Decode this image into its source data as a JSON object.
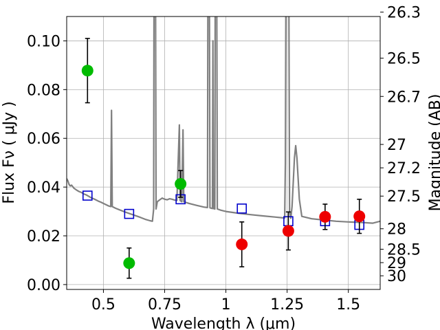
{
  "chart_data": {
    "type": "scatter",
    "title": "",
    "xlabel": "Wavelength  λ (μm)",
    "ylabel": "Flux  Fν  ( μJy )",
    "ylabel_right": "Magnitude (AB)",
    "xlim": [
      0.35,
      1.63
    ],
    "ylim": [
      -0.002,
      0.11
    ],
    "grid": true,
    "x_ticks": [
      {
        "value": 0.5,
        "label": "0.5"
      },
      {
        "value": 0.75,
        "label": "0.75"
      },
      {
        "value": 1.0,
        "label": "1"
      },
      {
        "value": 1.25,
        "label": "1.25"
      },
      {
        "value": 1.5,
        "label": "1.5"
      }
    ],
    "y_ticks": [
      {
        "value": 0.0,
        "label": "0.00"
      },
      {
        "value": 0.02,
        "label": "0.02"
      },
      {
        "value": 0.04,
        "label": "0.04"
      },
      {
        "value": 0.06,
        "label": "0.06"
      },
      {
        "value": 0.08,
        "label": "0.08"
      },
      {
        "value": 0.1,
        "label": "0.10"
      }
    ],
    "mag_ticks": [
      {
        "flux": 0.1118,
        "label": "26.3"
      },
      {
        "flux": 0.0929,
        "label": "26.5"
      },
      {
        "flux": 0.0772,
        "label": "26.7"
      },
      {
        "flux": 0.0575,
        "label": "27"
      },
      {
        "flux": 0.0479,
        "label": "27.2"
      },
      {
        "flux": 0.0363,
        "label": "27.5"
      },
      {
        "flux": 0.0229,
        "label": "28"
      },
      {
        "flux": 0.0145,
        "label": "28.5"
      },
      {
        "flux": 0.009,
        "label": "29"
      },
      {
        "flux": 0.0036,
        "label": "30"
      }
    ],
    "model_spectrum": {
      "color": "#808080",
      "points": [
        [
          0.35,
          0.0435
        ],
        [
          0.355,
          0.0425
        ],
        [
          0.36,
          0.041
        ],
        [
          0.365,
          0.0405
        ],
        [
          0.37,
          0.0408
        ],
        [
          0.38,
          0.0395
        ],
        [
          0.39,
          0.0388
        ],
        [
          0.4,
          0.0382
        ],
        [
          0.41,
          0.0378
        ],
        [
          0.42,
          0.0372
        ],
        [
          0.43,
          0.0368
        ],
        [
          0.44,
          0.0362
        ],
        [
          0.45,
          0.0356
        ],
        [
          0.46,
          0.0352
        ],
        [
          0.47,
          0.0347
        ],
        [
          0.48,
          0.0342
        ],
        [
          0.49,
          0.0338
        ],
        [
          0.5,
          0.0333
        ],
        [
          0.51,
          0.0328
        ],
        [
          0.52,
          0.0323
        ],
        [
          0.53,
          0.032
        ],
        [
          0.533,
          0.0715
        ],
        [
          0.536,
          0.032
        ],
        [
          0.55,
          0.0313
        ],
        [
          0.57,
          0.0305
        ],
        [
          0.59,
          0.0297
        ],
        [
          0.61,
          0.029
        ],
        [
          0.63,
          0.0283
        ],
        [
          0.65,
          0.0276
        ],
        [
          0.67,
          0.0268
        ],
        [
          0.69,
          0.0262
        ],
        [
          0.7,
          0.026
        ],
        [
          0.705,
          0.031
        ],
        [
          0.707,
          0.15
        ],
        [
          0.712,
          0.15
        ],
        [
          0.715,
          0.031
        ],
        [
          0.72,
          0.034
        ],
        [
          0.73,
          0.0348
        ],
        [
          0.74,
          0.0355
        ],
        [
          0.75,
          0.035
        ],
        [
          0.76,
          0.0348
        ],
        [
          0.77,
          0.0352
        ],
        [
          0.78,
          0.035
        ],
        [
          0.79,
          0.0347
        ],
        [
          0.8,
          0.0345
        ],
        [
          0.81,
          0.0655
        ],
        [
          0.813,
          0.0345
        ],
        [
          0.82,
          0.034
        ],
        [
          0.825,
          0.0635
        ],
        [
          0.828,
          0.034
        ],
        [
          0.85,
          0.0333
        ],
        [
          0.88,
          0.0325
        ],
        [
          0.91,
          0.0318
        ],
        [
          0.925,
          0.0316
        ],
        [
          0.927,
          0.15
        ],
        [
          0.932,
          0.15
        ],
        [
          0.935,
          0.0315
        ],
        [
          0.945,
          0.0312
        ],
        [
          0.947,
          0.1
        ],
        [
          0.949,
          0.0312
        ],
        [
          0.955,
          0.031
        ],
        [
          0.957,
          0.15
        ],
        [
          0.962,
          0.15
        ],
        [
          0.965,
          0.031
        ],
        [
          0.98,
          0.0305
        ],
        [
          1.0,
          0.03
        ],
        [
          1.05,
          0.0293
        ],
        [
          1.1,
          0.0287
        ],
        [
          1.15,
          0.0282
        ],
        [
          1.2,
          0.0277
        ],
        [
          1.24,
          0.0273
        ],
        [
          1.243,
          0.05
        ],
        [
          1.246,
          0.15
        ],
        [
          1.256,
          0.15
        ],
        [
          1.26,
          0.03
        ],
        [
          1.265,
          0.0272
        ],
        [
          1.27,
          0.032
        ],
        [
          1.28,
          0.052
        ],
        [
          1.285,
          0.057
        ],
        [
          1.29,
          0.052
        ],
        [
          1.3,
          0.035
        ],
        [
          1.31,
          0.028
        ],
        [
          1.35,
          0.027
        ],
        [
          1.4,
          0.0265
        ],
        [
          1.45,
          0.026
        ],
        [
          1.5,
          0.0257
        ],
        [
          1.55,
          0.0255
        ],
        [
          1.6,
          0.0252
        ],
        [
          1.63,
          0.026
        ]
      ]
    },
    "series": [
      {
        "color": "#0000cc",
        "marker": "square-open",
        "points": [
          {
            "x": 0.435,
            "y": 0.0365
          },
          {
            "x": 0.605,
            "y": 0.029
          },
          {
            "x": 0.815,
            "y": 0.035
          },
          {
            "x": 1.065,
            "y": 0.0312
          },
          {
            "x": 1.255,
            "y": 0.026
          },
          {
            "x": 1.405,
            "y": 0.026
          },
          {
            "x": 1.545,
            "y": 0.0245
          }
        ]
      },
      {
        "color": "#00bb00",
        "marker": "circle",
        "points": [
          {
            "x": 0.435,
            "y": 0.0878,
            "err": 0.0132
          },
          {
            "x": 0.605,
            "y": 0.0088,
            "err": 0.0062
          },
          {
            "x": 0.815,
            "y": 0.0413,
            "err": 0.0055
          }
        ]
      },
      {
        "color": "#ee0000",
        "marker": "circle",
        "points": [
          {
            "x": 1.065,
            "y": 0.0165,
            "err": 0.0092
          },
          {
            "x": 1.255,
            "y": 0.022,
            "err": 0.0078
          },
          {
            "x": 1.405,
            "y": 0.0278,
            "err": 0.0052
          },
          {
            "x": 1.545,
            "y": 0.028,
            "err": 0.007
          }
        ]
      }
    ]
  }
}
